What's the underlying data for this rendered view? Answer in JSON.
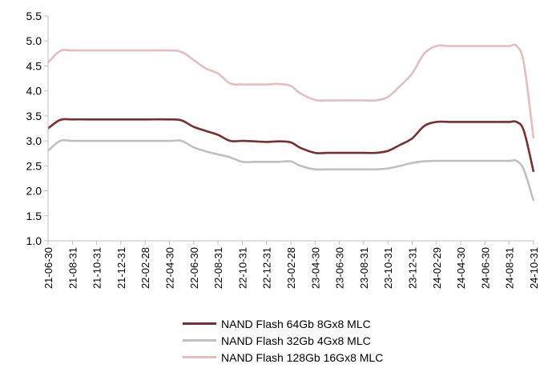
{
  "chart_data": {
    "type": "line",
    "title": "",
    "xlabel": "",
    "ylabel": "",
    "ylim": [
      1.0,
      5.5
    ],
    "yticks": [
      "1.0",
      "1.5",
      "2.0",
      "2.5",
      "3.0",
      "3.5",
      "4.0",
      "4.5",
      "5.0",
      "5.5"
    ],
    "categories": [
      "21-06-30",
      "21-08-31",
      "21-10-31",
      "21-12-31",
      "22-02-28",
      "22-04-30",
      "22-06-30",
      "22-08-31",
      "22-10-31",
      "22-12-31",
      "23-02-28",
      "23-04-30",
      "23-06-30",
      "23-08-31",
      "23-10-31",
      "23-12-31",
      "24-02-29",
      "24-04-30",
      "24-06-30",
      "24-08-31",
      "24-10-31"
    ],
    "series": [
      {
        "name": "NAND Flash 64Gb 8Gx8 MLC",
        "color": "#7b2c2c",
        "points": [
          [
            0,
            3.25
          ],
          [
            0.5,
            3.42
          ],
          [
            1,
            3.43
          ],
          [
            2,
            3.43
          ],
          [
            3,
            3.43
          ],
          [
            4,
            3.43
          ],
          [
            5,
            3.43
          ],
          [
            5.5,
            3.41
          ],
          [
            6,
            3.28
          ],
          [
            6.5,
            3.2
          ],
          [
            7,
            3.12
          ],
          [
            7.5,
            3.0
          ],
          [
            8,
            3.0
          ],
          [
            8.5,
            2.99
          ],
          [
            9,
            2.98
          ],
          [
            9.5,
            2.99
          ],
          [
            10,
            2.97
          ],
          [
            10.4,
            2.86
          ],
          [
            11,
            2.76
          ],
          [
            11.5,
            2.76
          ],
          [
            12,
            2.76
          ],
          [
            13,
            2.76
          ],
          [
            13.5,
            2.76
          ],
          [
            14,
            2.8
          ],
          [
            14.5,
            2.92
          ],
          [
            15,
            3.05
          ],
          [
            15.5,
            3.3
          ],
          [
            16,
            3.38
          ],
          [
            16.5,
            3.38
          ],
          [
            17,
            3.38
          ],
          [
            18,
            3.38
          ],
          [
            18.5,
            3.38
          ],
          [
            19,
            3.38
          ],
          [
            19.3,
            3.38
          ],
          [
            19.6,
            3.2
          ],
          [
            20,
            2.38
          ]
        ]
      },
      {
        "name": "NAND Flash 32Gb 4Gx8 MLC",
        "color": "#bfbfbf",
        "points": [
          [
            0,
            2.8
          ],
          [
            0.5,
            3.0
          ],
          [
            1,
            3.0
          ],
          [
            2,
            3.0
          ],
          [
            3,
            3.0
          ],
          [
            4,
            3.0
          ],
          [
            5,
            3.0
          ],
          [
            5.5,
            3.0
          ],
          [
            6,
            2.87
          ],
          [
            6.5,
            2.79
          ],
          [
            7,
            2.73
          ],
          [
            7.5,
            2.67
          ],
          [
            8,
            2.58
          ],
          [
            8.5,
            2.58
          ],
          [
            9,
            2.58
          ],
          [
            9.5,
            2.58
          ],
          [
            10,
            2.59
          ],
          [
            10.4,
            2.5
          ],
          [
            11,
            2.43
          ],
          [
            11.5,
            2.43
          ],
          [
            12,
            2.43
          ],
          [
            13,
            2.43
          ],
          [
            13.5,
            2.43
          ],
          [
            14,
            2.45
          ],
          [
            14.5,
            2.5
          ],
          [
            15,
            2.56
          ],
          [
            15.5,
            2.59
          ],
          [
            16,
            2.6
          ],
          [
            16.5,
            2.6
          ],
          [
            17,
            2.6
          ],
          [
            18,
            2.6
          ],
          [
            18.5,
            2.6
          ],
          [
            19,
            2.6
          ],
          [
            19.3,
            2.6
          ],
          [
            19.6,
            2.42
          ],
          [
            20,
            1.8
          ]
        ]
      },
      {
        "name": "NAND Flash 128Gb 16Gx8 MLC",
        "color": "#e6bcbc",
        "points": [
          [
            0,
            4.57
          ],
          [
            0.5,
            4.8
          ],
          [
            1,
            4.81
          ],
          [
            2,
            4.81
          ],
          [
            3,
            4.81
          ],
          [
            4,
            4.81
          ],
          [
            5,
            4.81
          ],
          [
            5.5,
            4.78
          ],
          [
            6,
            4.62
          ],
          [
            6.5,
            4.45
          ],
          [
            7,
            4.35
          ],
          [
            7.5,
            4.15
          ],
          [
            8,
            4.13
          ],
          [
            8.5,
            4.13
          ],
          [
            9,
            4.13
          ],
          [
            9.5,
            4.14
          ],
          [
            10,
            4.1
          ],
          [
            10.4,
            3.95
          ],
          [
            11,
            3.82
          ],
          [
            11.5,
            3.81
          ],
          [
            12,
            3.81
          ],
          [
            13,
            3.81
          ],
          [
            13.5,
            3.81
          ],
          [
            14,
            3.88
          ],
          [
            14.5,
            4.1
          ],
          [
            15,
            4.35
          ],
          [
            15.5,
            4.75
          ],
          [
            16,
            4.9
          ],
          [
            16.5,
            4.9
          ],
          [
            17,
            4.9
          ],
          [
            18,
            4.9
          ],
          [
            18.5,
            4.9
          ],
          [
            19,
            4.9
          ],
          [
            19.3,
            4.9
          ],
          [
            19.6,
            4.55
          ],
          [
            20,
            3.05
          ]
        ]
      }
    ],
    "legend_position": "bottom"
  }
}
